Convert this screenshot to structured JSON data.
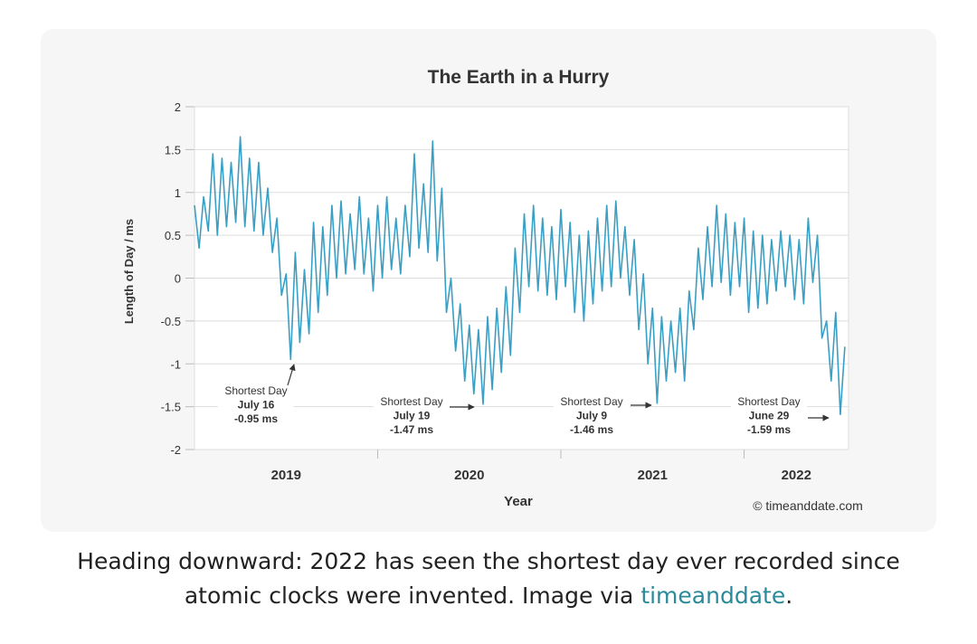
{
  "chart_data": {
    "type": "line",
    "title": "The Earth in a Hurry",
    "ylabel": "Length of Day / ms",
    "xlabel": "Year",
    "credit": "© timeanddate.com",
    "color": "#3a9fc4",
    "grid": true,
    "xlim": [
      2019,
      2022.57
    ],
    "xticks": [
      {
        "value": 2019.5,
        "label": "2019"
      },
      {
        "value": 2020.5,
        "label": "2020"
      },
      {
        "value": 2021.5,
        "label": "2021"
      },
      {
        "value": 2022.285,
        "label": "2022"
      }
    ],
    "xtick_marks": [
      2020,
      2021,
      2022
    ],
    "ylim": [
      -2,
      2
    ],
    "yticks": [
      2,
      1.5,
      1,
      0.5,
      0,
      -0.5,
      -1,
      -1.5,
      -2
    ],
    "x": [
      2019,
      2019.025,
      2019.05,
      2019.075,
      2019.1,
      2019.125,
      2019.15,
      2019.175,
      2019.2,
      2019.225,
      2019.25,
      2019.275,
      2019.3,
      2019.325,
      2019.35,
      2019.375,
      2019.4,
      2019.425,
      2019.45,
      2019.475,
      2019.5,
      2019.525,
      2019.55,
      2019.575,
      2019.6,
      2019.625,
      2019.65,
      2019.675,
      2019.7,
      2019.725,
      2019.75,
      2019.775,
      2019.8,
      2019.825,
      2019.85,
      2019.875,
      2019.9,
      2019.925,
      2019.95,
      2019.975,
      2020,
      2020.025,
      2020.05,
      2020.075,
      2020.1,
      2020.125,
      2020.15,
      2020.175,
      2020.2,
      2020.225,
      2020.25,
      2020.275,
      2020.3,
      2020.325,
      2020.35,
      2020.375,
      2020.4,
      2020.425,
      2020.45,
      2020.475,
      2020.5,
      2020.525,
      2020.55,
      2020.575,
      2020.6,
      2020.625,
      2020.65,
      2020.675,
      2020.7,
      2020.725,
      2020.75,
      2020.775,
      2020.8,
      2020.825,
      2020.85,
      2020.875,
      2020.9,
      2020.925,
      2020.95,
      2020.975,
      2021,
      2021.025,
      2021.05,
      2021.075,
      2021.1,
      2021.125,
      2021.15,
      2021.175,
      2021.2,
      2021.225,
      2021.25,
      2021.275,
      2021.3,
      2021.325,
      2021.35,
      2021.375,
      2021.4,
      2021.425,
      2021.45,
      2021.475,
      2021.5,
      2021.525,
      2021.55,
      2021.575,
      2021.6,
      2021.625,
      2021.65,
      2021.675,
      2021.7,
      2021.725,
      2021.75,
      2021.775,
      2021.8,
      2021.825,
      2021.85,
      2021.875,
      2021.9,
      2021.925,
      2021.95,
      2021.975,
      2022,
      2022.025,
      2022.05,
      2022.075,
      2022.1,
      2022.125,
      2022.15,
      2022.175,
      2022.2,
      2022.225,
      2022.25,
      2022.275,
      2022.3,
      2022.325,
      2022.35,
      2022.375,
      2022.4,
      2022.425,
      2022.45,
      2022.475,
      2022.5,
      2022.525,
      2022.55
    ],
    "values": [
      0.85,
      0.35,
      0.95,
      0.55,
      1.45,
      0.5,
      1.4,
      0.6,
      1.35,
      0.65,
      1.65,
      0.6,
      1.4,
      0.55,
      1.35,
      0.5,
      1.05,
      0.3,
      0.7,
      -0.2,
      0.05,
      -0.95,
      0.3,
      -0.75,
      0.1,
      -0.65,
      0.65,
      -0.4,
      0.6,
      -0.2,
      0.85,
      0,
      0.9,
      0.05,
      0.75,
      0.1,
      0.95,
      0.05,
      0.7,
      -0.15,
      0.85,
      0,
      0.95,
      0.1,
      0.7,
      0.05,
      0.85,
      0.25,
      1.45,
      0.35,
      1.1,
      0.3,
      1.6,
      0.2,
      1.05,
      -0.4,
      0,
      -0.85,
      -0.3,
      -1.2,
      -0.55,
      -1.35,
      -0.6,
      -1.47,
      -0.45,
      -1.3,
      -0.35,
      -1.1,
      -0.1,
      -0.9,
      0.35,
      -0.4,
      0.75,
      -0.1,
      0.85,
      -0.15,
      0.7,
      -0.2,
      0.6,
      -0.25,
      0.8,
      -0.1,
      0.65,
      -0.4,
      0.5,
      -0.5,
      0.55,
      -0.3,
      0.7,
      -0.15,
      0.85,
      -0.1,
      0.9,
      0,
      0.6,
      -0.2,
      0.45,
      -0.6,
      0.05,
      -1,
      -0.35,
      -1.46,
      -0.45,
      -1.2,
      -0.5,
      -1.1,
      -0.35,
      -1.2,
      -0.15,
      -0.6,
      0.35,
      -0.25,
      0.6,
      -0.1,
      0.85,
      -0.05,
      0.75,
      -0.2,
      0.65,
      -0.1,
      0.7,
      -0.4,
      0.55,
      -0.35,
      0.5,
      -0.3,
      0.45,
      -0.15,
      0.55,
      -0.1,
      0.5,
      -0.25,
      0.45,
      -0.3,
      0.7,
      -0.05,
      0.5,
      -0.7,
      -0.5,
      -1.2,
      -0.4,
      -1.59,
      -0.8
    ],
    "annotations": [
      {
        "lines": [
          "Shortest Day",
          "July 16",
          "-0.95 ms"
        ]
      },
      {
        "lines": [
          "Shortest Day",
          "July 19",
          "-1.47 ms"
        ]
      },
      {
        "lines": [
          "Shortest Day",
          "July 9",
          "-1.46 ms"
        ]
      },
      {
        "lines": [
          "Shortest Day",
          "June 29",
          "-1.59 ms"
        ]
      }
    ]
  },
  "caption": {
    "line1": "Heading downward: 2022 has seen the shortest day ever recorded since",
    "line2": "atomic clocks were invented. Image via ",
    "link": "timeanddate",
    "end": "."
  }
}
